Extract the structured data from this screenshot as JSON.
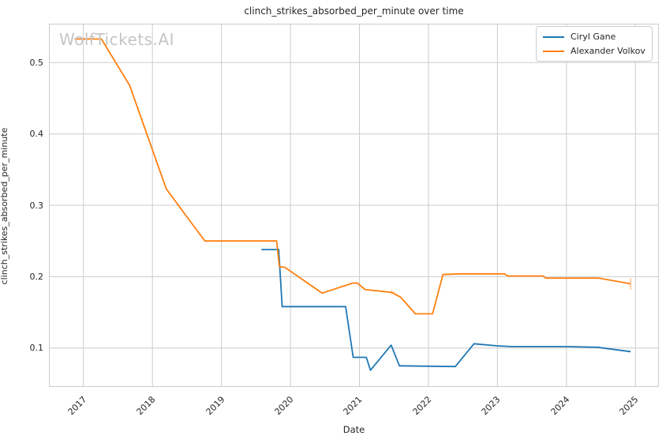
{
  "figure": {
    "title": "clinch_strikes_absorbed_per_minute over time",
    "watermark": "WolfTickets.AI",
    "xlabel": "Date",
    "ylabel": "clinch_strikes_absorbed_per_minute"
  },
  "legend": {
    "position": "upper right",
    "items": [
      {
        "label": "Ciryl Gane",
        "color": "#1f77b4"
      },
      {
        "label": "Alexander Volkov",
        "color": "#ff7f0e"
      }
    ]
  },
  "colors": {
    "gane_line": "#1f77b4",
    "volkov_line": "#ff7f0e",
    "grid": "#cccccc",
    "frame": "#cccccc",
    "text": "#262626",
    "watermark": "#c5c5c5",
    "background": "#ffffff"
  },
  "chart_data": {
    "type": "line",
    "title": "clinch_strikes_absorbed_per_minute over time",
    "xlabel": "Date",
    "ylabel": "clinch_strikes_absorbed_per_minute",
    "grid": true,
    "legend_position": "upper right",
    "xlim": [
      2016.5,
      2025.34
    ],
    "ylim": [
      0.0455,
      0.5545
    ],
    "x_ticks": [
      2017,
      2018,
      2019,
      2020,
      2021,
      2022,
      2023,
      2024,
      2025
    ],
    "x_tick_labels": [
      "2017",
      "2018",
      "2019",
      "2020",
      "2021",
      "2022",
      "2023",
      "2024",
      "2025"
    ],
    "y_ticks": [
      0.1,
      0.2,
      0.3,
      0.4,
      0.5
    ],
    "y_tick_labels": [
      "0.1",
      "0.2",
      "0.3",
      "0.4",
      "0.5"
    ],
    "series": [
      {
        "name": "Ciryl Gane",
        "color": "#1f77b4",
        "points": [
          [
            2019.58,
            0.238
          ],
          [
            2019.83,
            0.238
          ],
          [
            2019.88,
            0.158
          ],
          [
            2020.8,
            0.158
          ],
          [
            2020.91,
            0.087
          ],
          [
            2021.1,
            0.087
          ],
          [
            2021.16,
            0.069
          ],
          [
            2021.46,
            0.104
          ],
          [
            2021.58,
            0.075
          ],
          [
            2022.39,
            0.074
          ],
          [
            2022.66,
            0.106
          ],
          [
            2023.0,
            0.103
          ],
          [
            2023.2,
            0.102
          ],
          [
            2024.0,
            0.102
          ],
          [
            2024.45,
            0.101
          ],
          [
            2024.93,
            0.095
          ]
        ],
        "end_cap": false
      },
      {
        "name": "Alexander Volkov",
        "color": "#ff7f0e",
        "points": [
          [
            2016.87,
            0.533
          ],
          [
            2017.26,
            0.533
          ],
          [
            2017.67,
            0.468
          ],
          [
            2018.2,
            0.323
          ],
          [
            2018.76,
            0.25
          ],
          [
            2019.8,
            0.25
          ],
          [
            2019.84,
            0.214
          ],
          [
            2019.92,
            0.213
          ],
          [
            2020.46,
            0.177
          ],
          [
            2020.9,
            0.191
          ],
          [
            2020.97,
            0.191
          ],
          [
            2021.08,
            0.182
          ],
          [
            2021.47,
            0.178
          ],
          [
            2021.6,
            0.171
          ],
          [
            2021.81,
            0.148
          ],
          [
            2022.06,
            0.148
          ],
          [
            2022.21,
            0.203
          ],
          [
            2022.45,
            0.204
          ],
          [
            2023.1,
            0.204
          ],
          [
            2023.15,
            0.201
          ],
          [
            2023.66,
            0.201
          ],
          [
            2023.7,
            0.198
          ],
          [
            2024.47,
            0.198
          ],
          [
            2024.93,
            0.19
          ]
        ],
        "end_cap": true,
        "faint_plus_marker": [
          2021.47,
          0.178
        ]
      }
    ]
  }
}
